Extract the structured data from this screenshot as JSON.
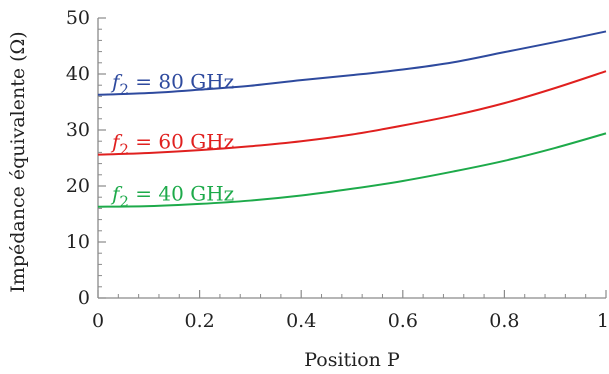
{
  "chart_data": {
    "type": "line",
    "xlabel": "Position P",
    "ylabel": "Impédance équivalente (Ω)",
    "xlim": [
      0,
      1
    ],
    "ylim": [
      0,
      50
    ],
    "x_ticks": [
      "0",
      "0.2",
      "0.4",
      "0.6",
      "0.8",
      "1"
    ],
    "y_ticks": [
      "0",
      "10",
      "20",
      "30",
      "40",
      "50"
    ],
    "grid": false,
    "x": [
      0,
      0.1,
      0.2,
      0.3,
      0.4,
      0.5,
      0.6,
      0.7,
      0.8,
      0.9,
      1.0
    ],
    "series": [
      {
        "name": "f2 = 80 GHz",
        "label_symbol": "f",
        "label_subscript": "2",
        "label_value": " = 80 GHz",
        "color": "#2e4a9e",
        "values": [
          36.3,
          36.6,
          37.2,
          37.9,
          38.9,
          39.8,
          40.8,
          42.1,
          43.9,
          45.7,
          47.6
        ]
      },
      {
        "name": "f2 = 60 GHz",
        "label_symbol": "f",
        "label_subscript": "2",
        "label_value": " = 60 GHz",
        "color": "#e0201f",
        "values": [
          25.6,
          25.9,
          26.4,
          27.1,
          28.0,
          29.2,
          30.8,
          32.6,
          34.8,
          37.5,
          40.5
        ]
      },
      {
        "name": "f2 = 40 GHz",
        "label_symbol": "f",
        "label_subscript": "2",
        "label_value": " = 40 GHz",
        "color": "#1daa4a",
        "values": [
          16.3,
          16.4,
          16.8,
          17.4,
          18.3,
          19.5,
          20.9,
          22.6,
          24.5,
          26.8,
          29.4
        ]
      }
    ]
  }
}
